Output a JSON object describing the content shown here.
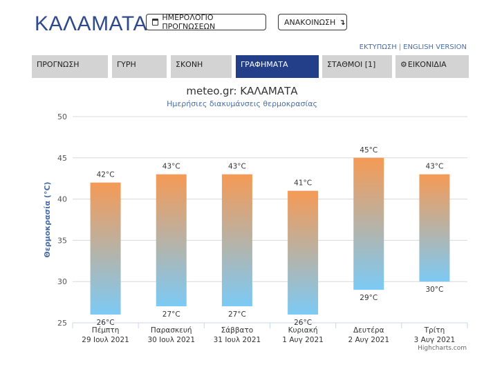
{
  "header": {
    "city": "ΚΑΛΑΜΑΤΑ",
    "calendar_button": "ΗΜΕΡΟΛΟΓΙΟ ΠΡΟΓΝΩΣΕΩΝ",
    "announcement_button": "ΑΝΑΚΟΙΝΩΣΗ"
  },
  "top_links": {
    "print": "ΕΚΤΥΠΩΣΗ",
    "separator": "|",
    "english": "ENGLISH VERSION"
  },
  "tabs": [
    {
      "label": "ΠΡΟΓΝΩΣΗ",
      "active": false
    },
    {
      "label": "ΓΥΡΗ",
      "active": false
    },
    {
      "label": "ΣΚΟΝΗ",
      "active": false
    },
    {
      "label": "ΓΡΑΦΗΜΑΤΑ",
      "active": true
    },
    {
      "label": "ΣΤΑΘΜΟΙ [1]",
      "active": false
    },
    {
      "label": "ΕΙΚΟΝΙΔΙΑ",
      "active": false
    }
  ],
  "credits": "Highcharts.com",
  "colors": {
    "accent": "#233f8a",
    "bar_top": "#f59a55",
    "bar_bottom": "#7ccaf5"
  },
  "chart_data": {
    "type": "bar",
    "title": "meteo.gr: ΚΑΛΑΜΑΤΑ",
    "subtitle": "Ημερήσιες διακυμάνσεις θερμοκρασίας",
    "ylabel": "Θερμοκρασία (°C)",
    "ylim": [
      25,
      50
    ],
    "yticks": [
      25,
      30,
      35,
      40,
      45,
      50
    ],
    "grid": true,
    "categories": [
      {
        "day": "Πέμπτη",
        "date": "29 Ιουλ 2021"
      },
      {
        "day": "Παρασκευή",
        "date": "30 Ιουλ 2021"
      },
      {
        "day": "Σάββατο",
        "date": "31 Ιουλ 2021"
      },
      {
        "day": "Κυριακή",
        "date": "1 Αυγ 2021"
      },
      {
        "day": "Δευτέρα",
        "date": "2 Αυγ 2021"
      },
      {
        "day": "Τρίτη",
        "date": "3 Αυγ 2021"
      }
    ],
    "min": [
      26,
      27,
      27,
      26,
      29,
      30
    ],
    "max": [
      42,
      43,
      43,
      41,
      45,
      43
    ],
    "unit": "°C"
  }
}
